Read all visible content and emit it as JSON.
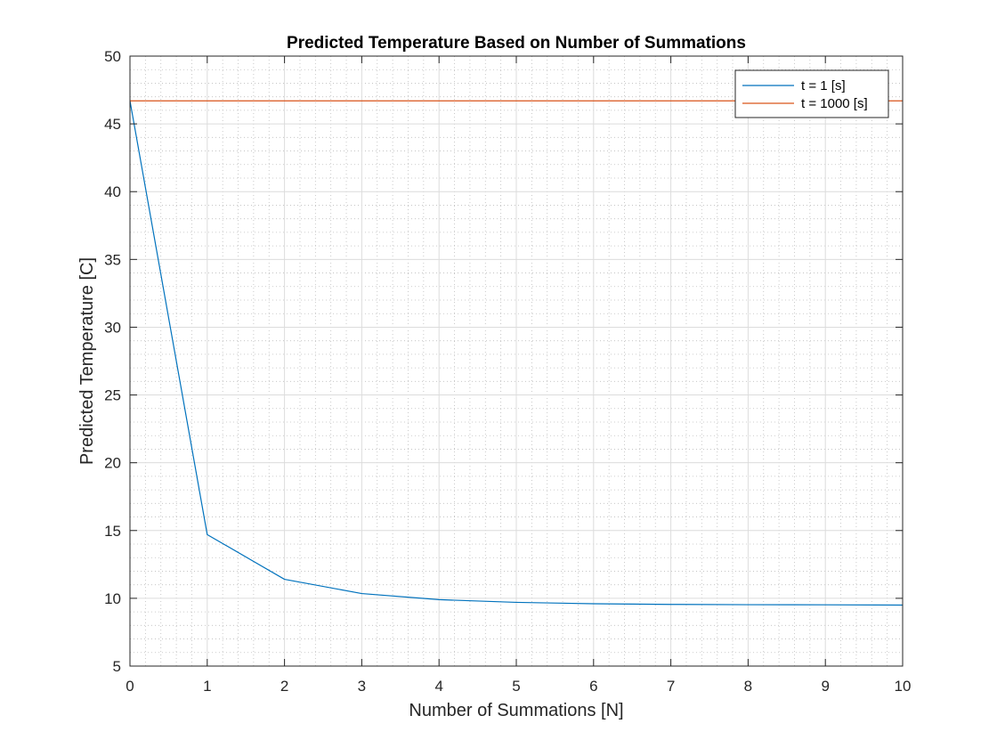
{
  "chart_data": {
    "type": "line",
    "title": "Predicted Temperature Based on Number of Summations",
    "xlabel": "Number of Summations [N]",
    "ylabel": "Predicted Temperature [C]",
    "xlim": [
      0,
      10
    ],
    "ylim": [
      5,
      50
    ],
    "xticks": [
      0,
      1,
      2,
      3,
      4,
      5,
      6,
      7,
      8,
      9,
      10
    ],
    "yticks": [
      5,
      10,
      15,
      20,
      25,
      30,
      35,
      40,
      45,
      50
    ],
    "grid": true,
    "minor_grid": true,
    "legend_position": "top-right",
    "series": [
      {
        "name": "t = 1 [s]",
        "color": "#0072BD",
        "x": [
          0,
          1,
          2,
          3,
          4,
          5,
          6,
          7,
          8,
          9,
          10
        ],
        "y": [
          46.7,
          14.7,
          11.4,
          10.35,
          9.9,
          9.7,
          9.6,
          9.55,
          9.53,
          9.52,
          9.5
        ]
      },
      {
        "name": "t = 1000 [s]",
        "color": "#D95319",
        "x": [
          0,
          1,
          2,
          3,
          4,
          5,
          6,
          7,
          8,
          9,
          10
        ],
        "y": [
          46.7,
          46.7,
          46.7,
          46.7,
          46.7,
          46.7,
          46.7,
          46.7,
          46.7,
          46.7,
          46.7
        ]
      }
    ]
  }
}
